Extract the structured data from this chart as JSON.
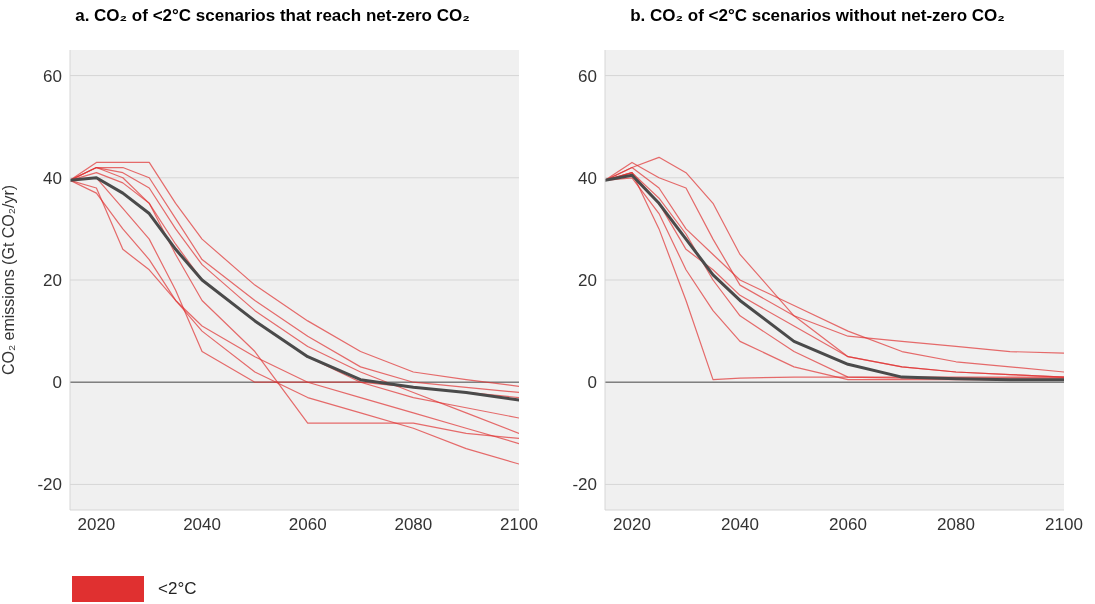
{
  "chart_data": [
    {
      "type": "line",
      "title": "a. CO₂ of <2°C scenarios that reach net-zero CO₂",
      "ylabel": "CO₂  emissions (Gt CO₂/yr)",
      "x": [
        2015,
        2020,
        2025,
        2030,
        2035,
        2040,
        2050,
        2060,
        2070,
        2080,
        2090,
        2100
      ],
      "xlim": [
        2015,
        2100
      ],
      "xticks": [
        2020,
        2040,
        2060,
        2080,
        2100
      ],
      "ylim": [
        -25,
        65
      ],
      "yticks": [
        -20,
        0,
        20,
        40,
        60
      ],
      "grid": "y",
      "legend": "bottom left",
      "marker": "none",
      "ref_lines": [
        {
          "axis": "y",
          "value": 0,
          "color": "#808080"
        }
      ],
      "series": [
        {
          "name": "<2°C",
          "color": "#e03030",
          "values": [
            39.5,
            43,
            43,
            43,
            35,
            28,
            19,
            12,
            6,
            2,
            0.5,
            -0.8
          ]
        },
        {
          "color": "#e03030",
          "values": [
            39.5,
            42,
            42,
            40,
            32,
            24,
            16,
            9,
            3,
            0,
            -1,
            -2
          ]
        },
        {
          "color": "#e03030",
          "values": [
            39.5,
            41,
            39,
            35,
            27,
            20,
            12,
            5,
            0,
            -3,
            -5,
            -7
          ]
        },
        {
          "color": "#e03030",
          "values": [
            39.5,
            38,
            26,
            22,
            16,
            11,
            5,
            0,
            -3,
            -6,
            -9,
            -12
          ]
        },
        {
          "color": "#e03030",
          "values": [
            39.5,
            37,
            30,
            24,
            16,
            10,
            2,
            -3,
            -6,
            -9,
            -13,
            -16
          ]
        },
        {
          "color": "#e03030",
          "values": [
            39.5,
            42,
            40,
            35,
            25,
            16,
            6,
            -8,
            -8,
            -8,
            -10,
            -11
          ]
        },
        {
          "color": "#e03030",
          "values": [
            39.5,
            40,
            34,
            28,
            18,
            6,
            0,
            0,
            0,
            -1,
            -2,
            -3
          ]
        },
        {
          "color": "#e03030",
          "values": [
            39.5,
            42,
            41,
            38,
            30,
            23,
            14,
            7,
            2,
            -2,
            -6,
            -10
          ]
        },
        {
          "color": "#4a4a4a",
          "values": [
            39.5,
            40,
            37,
            33,
            26,
            20,
            12,
            5,
            0.5,
            -1,
            -2,
            -3.5
          ]
        }
      ]
    },
    {
      "type": "line",
      "title": "b. CO₂ of <2°C scenarios without net-zero CO₂",
      "x": [
        2015,
        2020,
        2025,
        2030,
        2035,
        2040,
        2050,
        2060,
        2070,
        2080,
        2090,
        2100
      ],
      "xlim": [
        2015,
        2100
      ],
      "xticks": [
        2020,
        2040,
        2060,
        2080,
        2100
      ],
      "ylim": [
        -25,
        65
      ],
      "yticks": [
        -20,
        0,
        20,
        40,
        60
      ],
      "grid": "y",
      "marker": "none",
      "ref_lines": [
        {
          "axis": "y",
          "value": 0,
          "color": "#808080"
        }
      ],
      "series": [
        {
          "color": "#e03030",
          "values": [
            39.5,
            42,
            44,
            41,
            35,
            25,
            13,
            5,
            3,
            2,
            1.5,
            1
          ]
        },
        {
          "color": "#e03030",
          "values": [
            39.5,
            43,
            40,
            38,
            28,
            19,
            13,
            9,
            8,
            7,
            6,
            5.7
          ]
        },
        {
          "color": "#e03030",
          "values": [
            39.5,
            41,
            30,
            16,
            0.5,
            0.8,
            1,
            1,
            1,
            1,
            1,
            1
          ]
        },
        {
          "color": "#e03030",
          "values": [
            39.5,
            41,
            35,
            26,
            22,
            17,
            11,
            5,
            3,
            2,
            1.5,
            1
          ]
        },
        {
          "color": "#e03030",
          "values": [
            39.5,
            40,
            33,
            22,
            14,
            8,
            3,
            0.5,
            0.5,
            0.5,
            0.5,
            0.5
          ]
        },
        {
          "color": "#e03030",
          "values": [
            39.5,
            42,
            38,
            30,
            25,
            20,
            15,
            10,
            6,
            4,
            3,
            2
          ]
        },
        {
          "color": "#e03030",
          "values": [
            39.5,
            41,
            36,
            29,
            20,
            13,
            6,
            1,
            0.8,
            0.8,
            0.8,
            0.8
          ]
        },
        {
          "color": "#4a4a4a",
          "values": [
            39.5,
            40.5,
            35,
            28,
            21,
            16,
            8,
            3.5,
            1,
            0.7,
            0.5,
            0.5
          ]
        }
      ]
    }
  ]
}
